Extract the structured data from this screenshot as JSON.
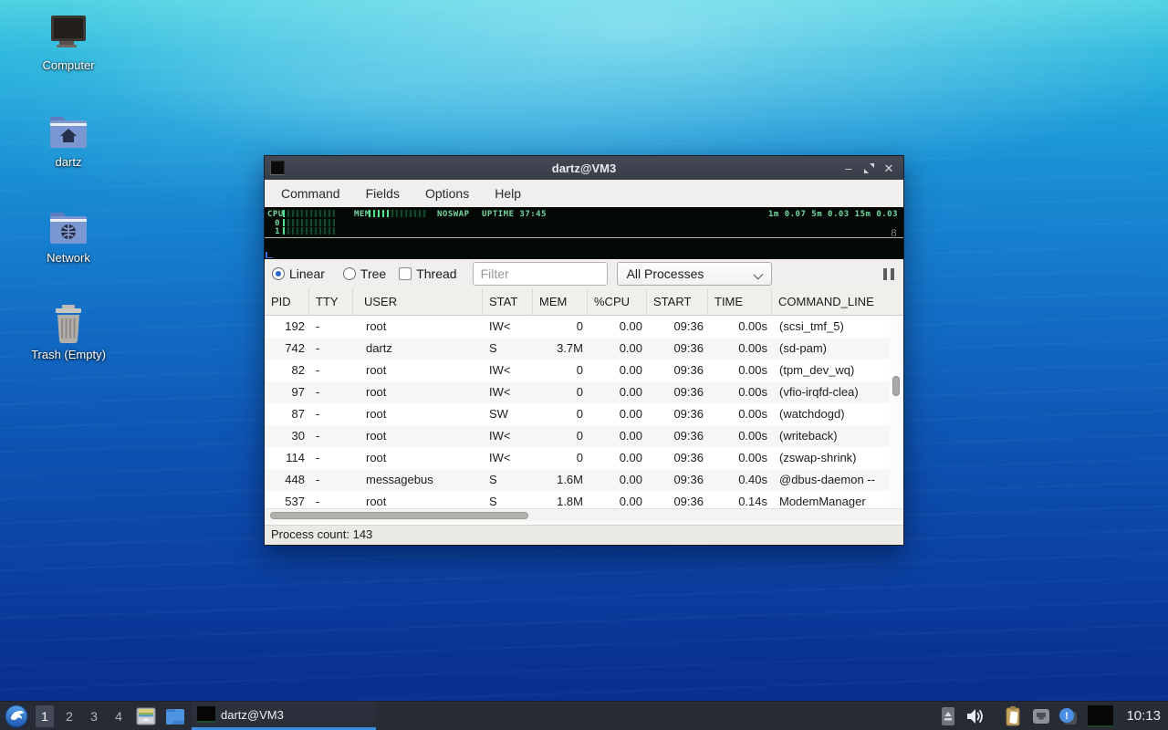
{
  "desktop": {
    "icons": [
      {
        "label": "Computer"
      },
      {
        "label": "dartz"
      },
      {
        "label": "Network"
      },
      {
        "label": "Trash (Empty)"
      }
    ]
  },
  "window": {
    "title": "dartz@VM3",
    "menu": [
      "Command",
      "Fields",
      "Options",
      "Help"
    ],
    "monitor": {
      "cpu_label": "CPU",
      "mem_label": "MEM",
      "noswap_label": "NOSWAP",
      "uptime_label": "UPTIME 37:45",
      "load_label": "1m 0.07  5m 0.03  15m 0.03",
      "cpu_row_labels": [
        "0",
        "1"
      ],
      "scale_label": "8",
      "cpu_meter_percent": 6,
      "mem_meter_percent": 34,
      "cpu0_meter_percent": 5,
      "cpu1_meter_percent": 4
    },
    "toolbar": {
      "linear_label": "Linear",
      "tree_label": "Tree",
      "thread_label": "Thread",
      "filter_placeholder": "Filter",
      "scope_value": "All Processes"
    },
    "table": {
      "headers": [
        "PID",
        "TTY",
        "USER",
        "STAT",
        "MEM",
        "%CPU",
        "START",
        "TIME",
        "COMMAND_LINE"
      ],
      "col_keys": [
        "pid",
        "tty",
        "user",
        "stat",
        "mem",
        "cpu",
        "start",
        "time",
        "command"
      ],
      "rows": [
        [
          "192",
          "-",
          "root",
          "IW<",
          "0",
          "0.00",
          "09:36",
          "0.00s",
          "(scsi_tmf_5)"
        ],
        [
          "742",
          "-",
          "dartz",
          "S",
          "3.7M",
          "0.00",
          "09:36",
          "0.00s",
          "(sd-pam)"
        ],
        [
          "82",
          "-",
          "root",
          "IW<",
          "0",
          "0.00",
          "09:36",
          "0.00s",
          "(tpm_dev_wq)"
        ],
        [
          "97",
          "-",
          "root",
          "IW<",
          "0",
          "0.00",
          "09:36",
          "0.00s",
          "(vfio-irqfd-clea)"
        ],
        [
          "87",
          "-",
          "root",
          "SW",
          "0",
          "0.00",
          "09:36",
          "0.00s",
          "(watchdogd)"
        ],
        [
          "30",
          "-",
          "root",
          "IW<",
          "0",
          "0.00",
          "09:36",
          "0.00s",
          "(writeback)"
        ],
        [
          "114",
          "-",
          "root",
          "IW<",
          "0",
          "0.00",
          "09:36",
          "0.00s",
          "(zswap-shrink)"
        ],
        [
          "448",
          "-",
          "messagebus",
          "S",
          "1.6M",
          "0.00",
          "09:36",
          "0.40s",
          "@dbus-daemon --"
        ],
        [
          "537",
          "-",
          "root",
          "S",
          "1.8M",
          "0.00",
          "09:36",
          "0.14s",
          "ModemManager"
        ]
      ]
    },
    "statusbar": "Process count: 143"
  },
  "taskbar": {
    "workspaces": [
      "1",
      "2",
      "3",
      "4"
    ],
    "active_workspace": "1",
    "task_label": "dartz@VM3",
    "clock": "10:13"
  },
  "colors": {
    "accent_blue": "#3d8de8",
    "led_green": "#55e392",
    "titlebar": "#3c414d",
    "taskbar_bg": "#272b35"
  }
}
